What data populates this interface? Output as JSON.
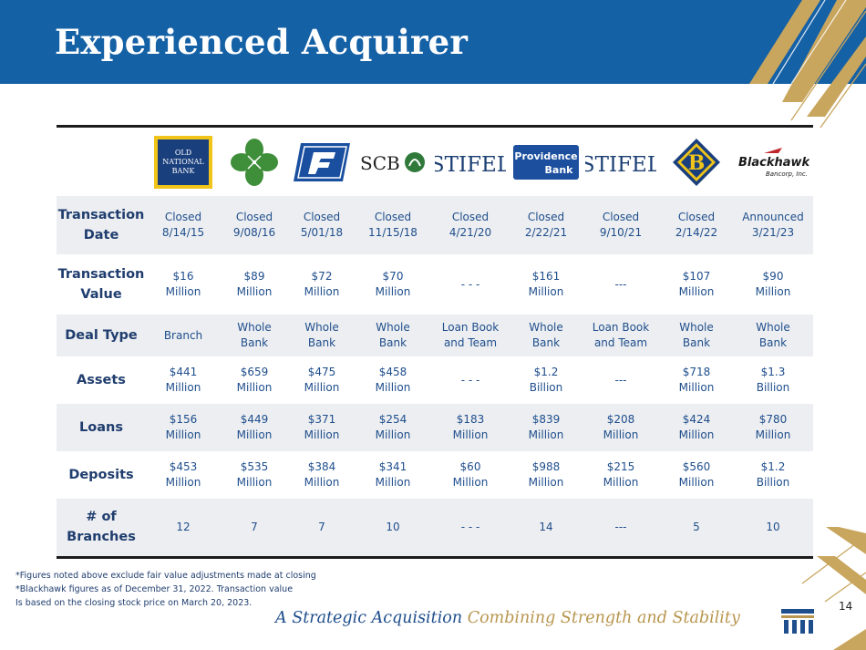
{
  "title": "Experienced Acquirer",
  "logos": [
    {
      "icon": "old-national-bank-logo",
      "lines": [
        "OLD",
        "NATIONAL",
        "BANK"
      ]
    },
    {
      "icon": "four-leaf-clover-logo"
    },
    {
      "icon": "f-bank-logo"
    },
    {
      "icon": "scb-logo",
      "text": "SCB"
    },
    {
      "icon": "stifel-logo",
      "text": "STIFEL"
    },
    {
      "icon": "providence-bank-logo",
      "lines": [
        "Providence",
        "Bank"
      ]
    },
    {
      "icon": "stifel-logo",
      "text": "STIFEL"
    },
    {
      "icon": "b-diamond-logo",
      "text": "B"
    },
    {
      "icon": "blackhawk-logo",
      "lines": [
        "Blackhawk",
        "Bancorp, Inc."
      ]
    }
  ],
  "rows": [
    {
      "label": "Transaction\nDate",
      "cells": [
        "Closed\n8/14/15",
        "Closed\n9/08/16",
        "Closed\n5/01/18",
        "Closed\n11/15/18",
        "Closed\n4/21/20",
        "Closed\n2/22/21",
        "Closed\n9/10/21",
        "Closed\n2/14/22",
        "Announced\n3/21/23"
      ]
    },
    {
      "label": "Transaction\nValue",
      "cells": [
        "$16\nMillion",
        "$89\nMillion",
        "$72\nMillion",
        "$70\nMillion",
        "- - -",
        "$161\nMillion",
        "---",
        "$107\nMillion",
        "$90\nMillion"
      ]
    },
    {
      "label": "Deal Type",
      "cells": [
        "Branch",
        "Whole\nBank",
        "Whole\nBank",
        "Whole\nBank",
        "Loan Book\nand Team",
        "Whole\nBank",
        "Loan Book\nand Team",
        "Whole\nBank",
        "Whole\nBank"
      ]
    },
    {
      "label": "Assets",
      "cells": [
        "$441\nMillion",
        "$659\nMillion",
        "$475\nMillion",
        "$458\nMillion",
        "- - -",
        "$1.2\nBillion",
        "---",
        "$718\nMillion",
        "$1.3\nBillion"
      ]
    },
    {
      "label": "Loans",
      "cells": [
        "$156\nMillion",
        "$449\nMillion",
        "$371\nMillion",
        "$254\nMillion",
        "$183\nMillion",
        "$839\nMillion",
        "$208\nMillion",
        "$424\nMillion",
        "$780\nMillion"
      ]
    },
    {
      "label": "Deposits",
      "cells": [
        "$453\nMillion",
        "$535\nMillion",
        "$384\nMillion",
        "$341\nMillion",
        "$60\nMillion",
        "$988\nMillion",
        "$215\nMillion",
        "$560\nMillion",
        "$1.2\nBillion"
      ]
    },
    {
      "label": "# of\nBranches",
      "cells": [
        "12",
        "7",
        "7",
        "10",
        "- - -",
        "14",
        "---",
        "5",
        "10"
      ]
    }
  ],
  "footnotes": [
    "*Figures noted above exclude fair value adjustments made at closing",
    "*Blackhawk figures as of December 31, 2022.  Transaction value",
    "Is based on the closing stock price on March 20, 2023."
  ],
  "footer": {
    "part1": "A Strategic Acquisition",
    "part2": "Combining Strength and Stability"
  },
  "page_number": "14",
  "colors": {
    "header_blue": "#1561a6",
    "accent_gold": "#b8964f",
    "text_navy": "#1f3d6e",
    "row_shade": "#eceef1"
  }
}
